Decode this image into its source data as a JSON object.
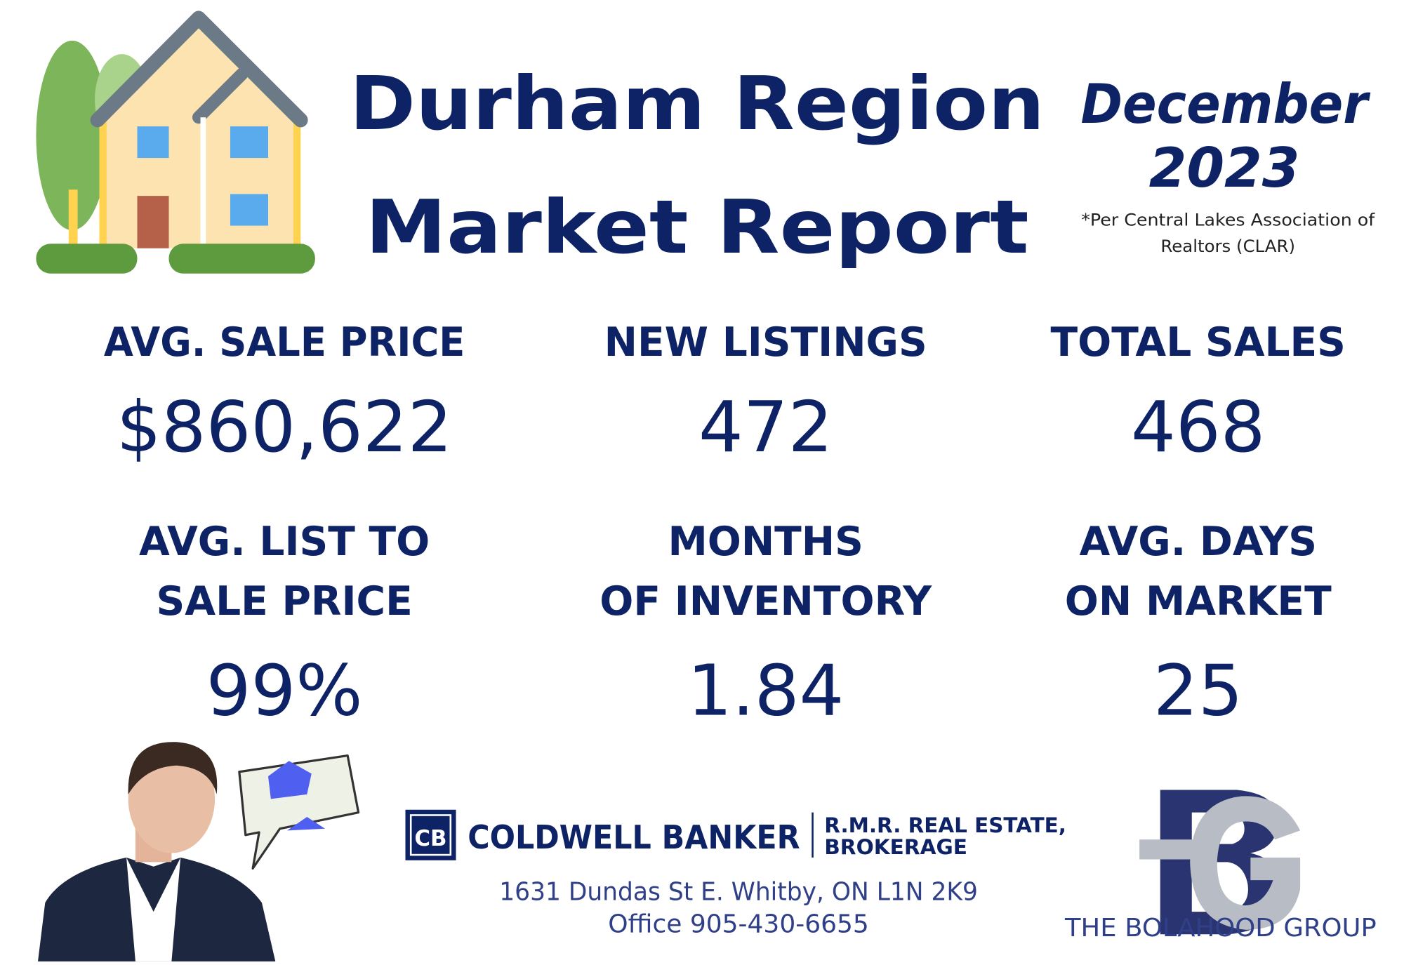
{
  "header": {
    "title_lines": [
      "Durham Region",
      "Market Report"
    ],
    "date_lines": [
      "December",
      "2023"
    ],
    "source_lines": [
      "*Per Central Lakes Association of",
      "Realtors (CLAR)"
    ]
  },
  "stats": [
    {
      "label_lines": [
        "AVG. SALE PRICE"
      ],
      "value": "$860,622"
    },
    {
      "label_lines": [
        "NEW LISTINGS"
      ],
      "value": "472"
    },
    {
      "label_lines": [
        "TOTAL SALES"
      ],
      "value": "468"
    },
    {
      "label_lines": [
        "AVG. LIST TO",
        "SALE PRICE"
      ],
      "value": "99%"
    },
    {
      "label_lines": [
        "MONTHS",
        "OF INVENTORY"
      ],
      "value": "1.84"
    },
    {
      "label_lines": [
        "AVG. DAYS",
        "ON MARKET"
      ],
      "value": "25"
    }
  ],
  "footer": {
    "brokerage": "COLDWELL BANKER",
    "brokerage_sub_lines": [
      "R.M.R. REAL ESTATE,",
      "BROKERAGE"
    ],
    "address": "1631 Dundas St E. Whitby, ON L1N 2K9",
    "phone": "Office 905-430-6655",
    "group": "THE BOLAHOOD GROUP"
  }
}
